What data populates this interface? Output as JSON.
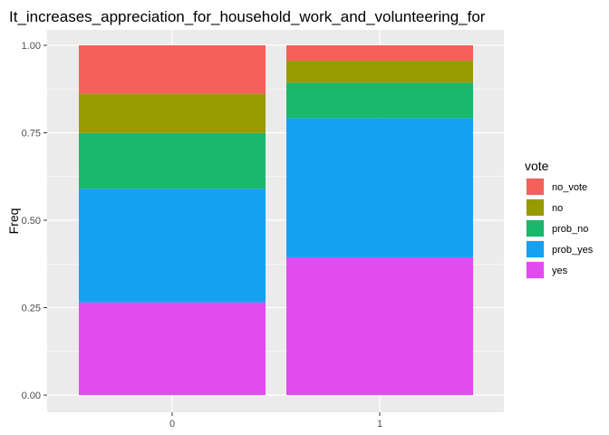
{
  "chart_data": {
    "type": "bar",
    "stacked": true,
    "title": "It_increases_appreciation_for_household_work_and_volunteering_for",
    "xlabel": "",
    "ylabel": "Freq",
    "categories": [
      "0",
      "1"
    ],
    "yticks": [
      "0.00",
      "0.25",
      "0.50",
      "0.75",
      "1.00"
    ],
    "ylim": [
      0,
      1
    ],
    "grid": true,
    "legend": {
      "title": "vote",
      "position": "right"
    },
    "series": [
      {
        "name": "yes",
        "color": "#E04CF0",
        "values": [
          0.265,
          0.394
        ]
      },
      {
        "name": "prob_yes",
        "color": "#16A0F2",
        "values": [
          0.325,
          0.398
        ]
      },
      {
        "name": "prob_no",
        "color": "#19B86B",
        "values": [
          0.159,
          0.101
        ]
      },
      {
        "name": "no",
        "color": "#999900",
        "values": [
          0.113,
          0.063
        ]
      },
      {
        "name": "no_vote",
        "color": "#F5605A",
        "values": [
          0.138,
          0.044
        ]
      }
    ],
    "legend_order": [
      "no_vote",
      "no",
      "prob_no",
      "prob_yes",
      "yes"
    ]
  }
}
